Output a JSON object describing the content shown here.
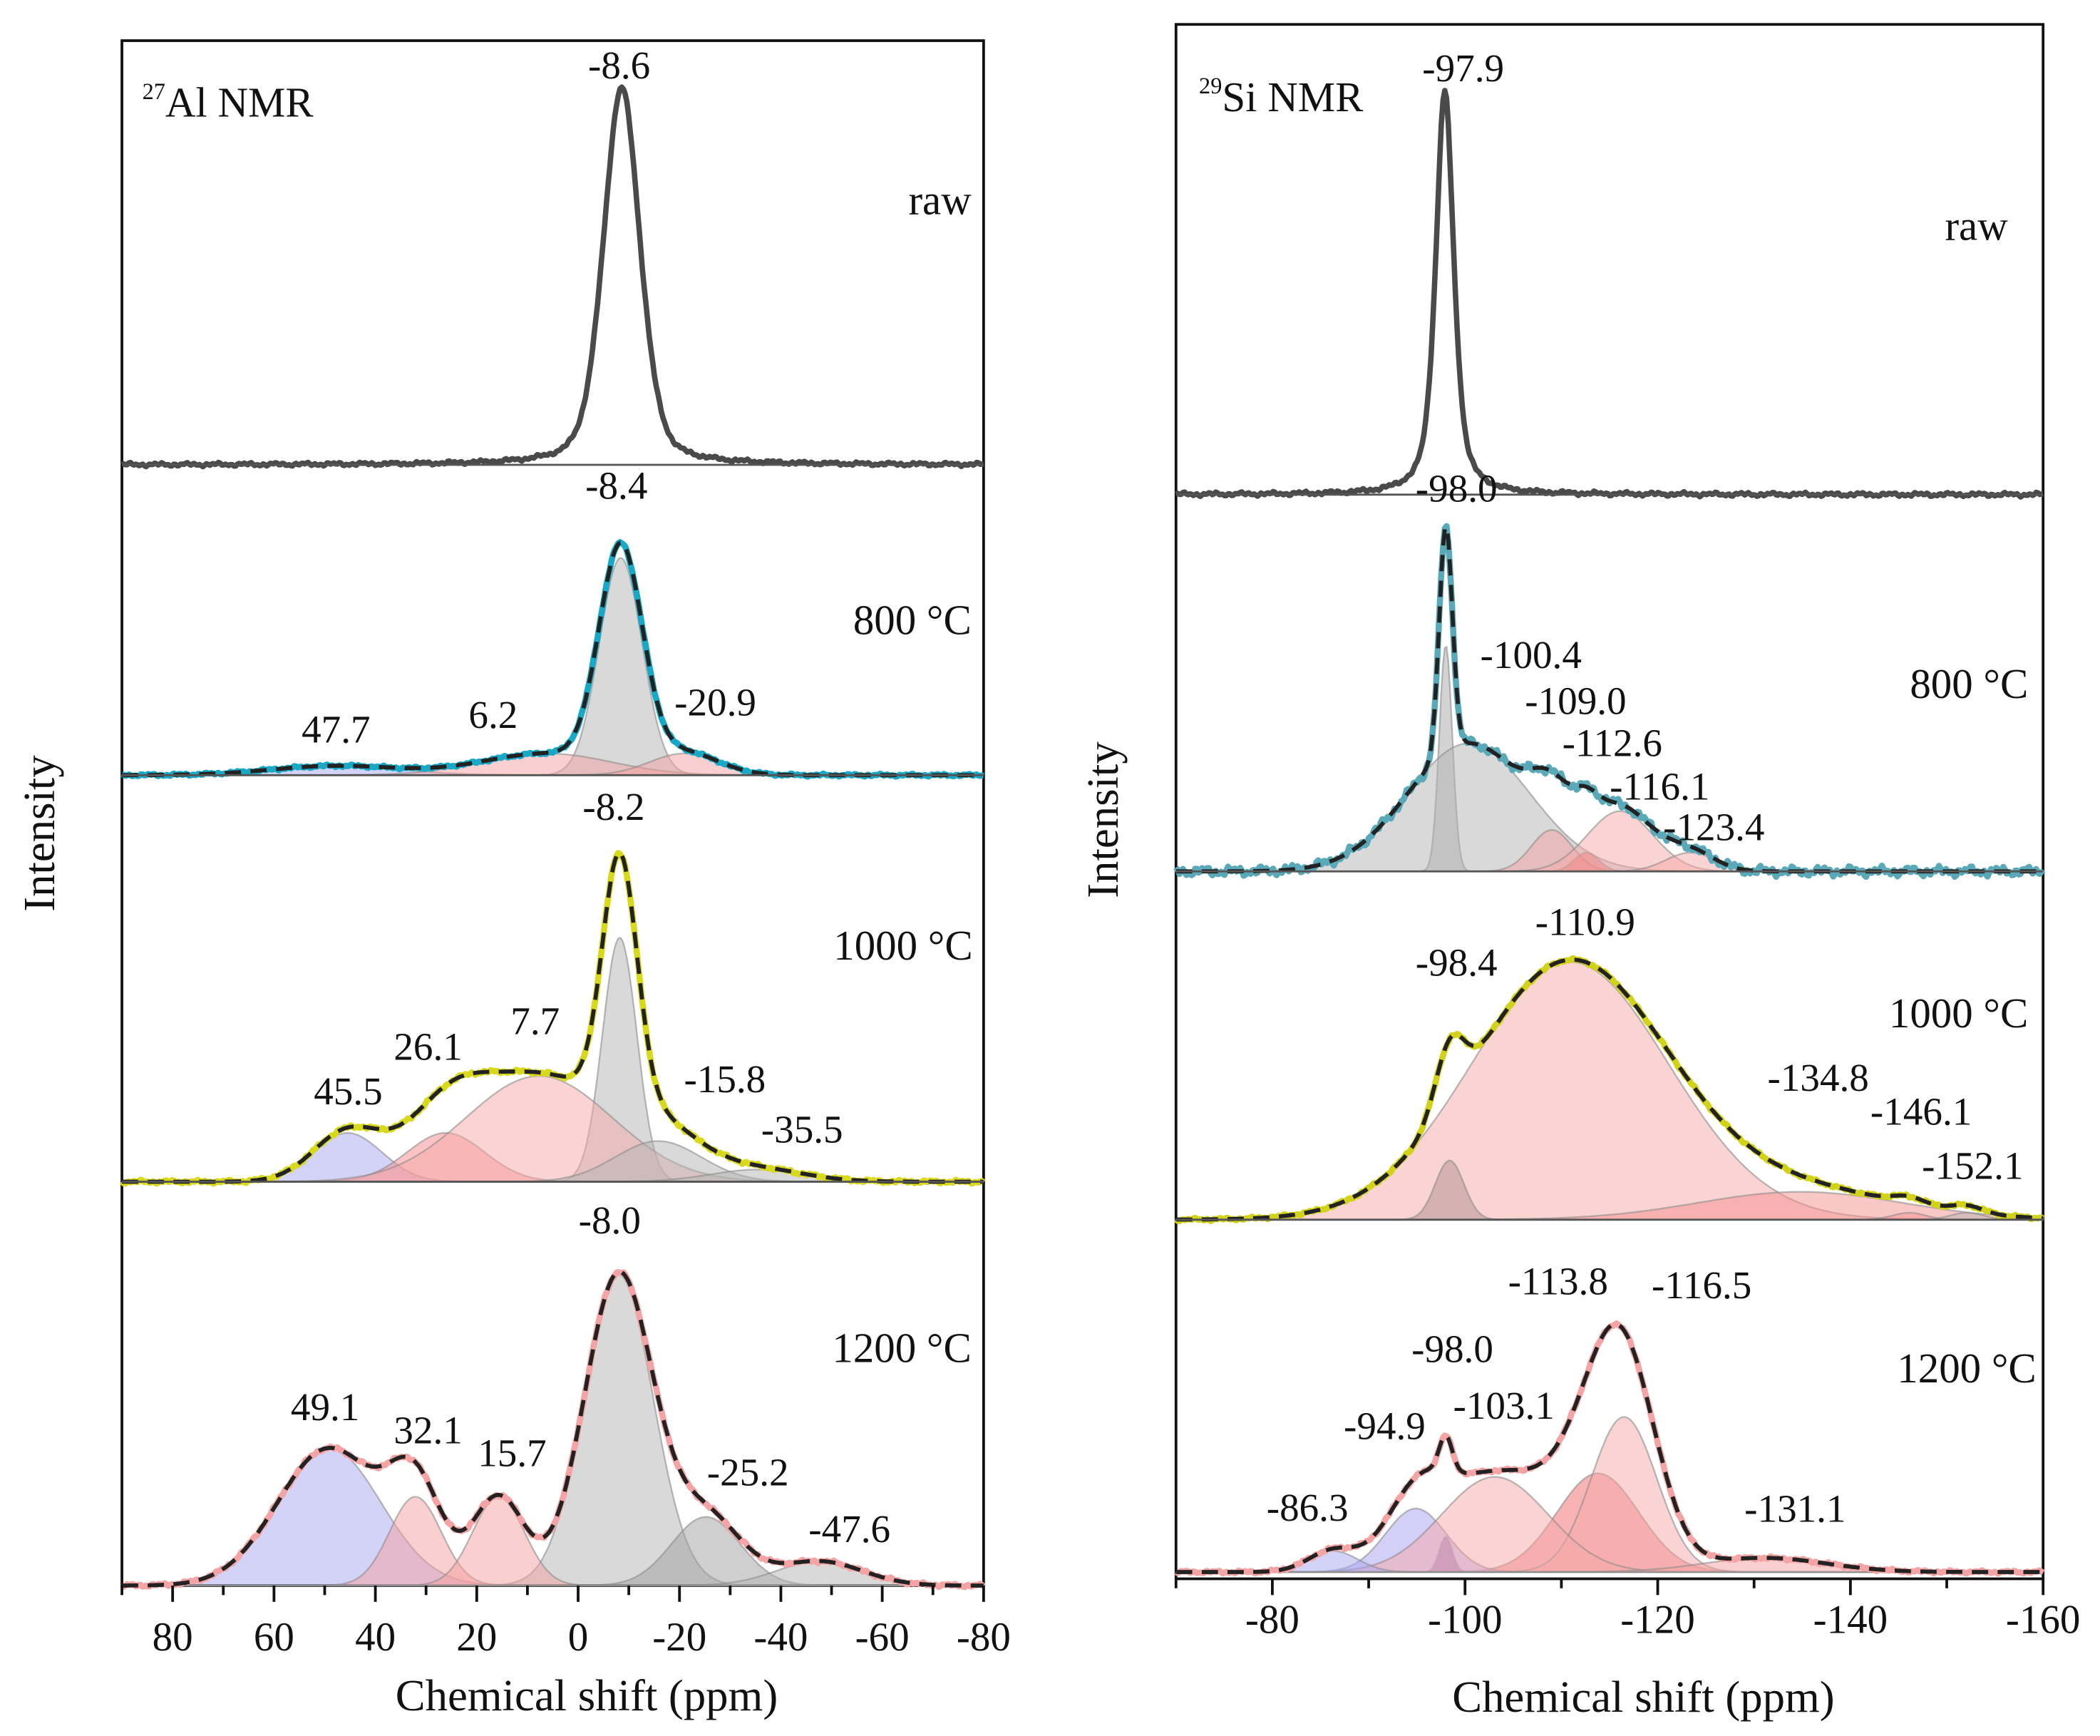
{
  "chart_data": [
    {
      "type": "line",
      "isotope": "27",
      "nucleus_label": "Al NMR",
      "xlabel": "Chemical shift (ppm)",
      "ylabel": "Intensity",
      "xlim": [
        90,
        -80
      ],
      "xticks": [
        80,
        60,
        40,
        20,
        0,
        -20,
        -40,
        -60,
        -80
      ],
      "tick_labels": [
        "80",
        "60",
        "40",
        "20",
        "0",
        "-20",
        "-40",
        "-60",
        "-80"
      ],
      "grid": false,
      "panels": [
        {
          "label": "raw",
          "line_color": "#4a4a4a",
          "peak_labels": [
            "-8.6"
          ],
          "components": [
            {
              "center": -8.6,
              "amplitude": 0.89,
              "fwhm": 8.5,
              "lorentz_fraction": 0.35,
              "color": "none"
            }
          ]
        },
        {
          "label": "800 °C",
          "line_color": "#19a9c6",
          "peak_labels": [
            "-8.4",
            "47.7",
            "6.2",
            "-20.9"
          ],
          "components": [
            {
              "center": -8.4,
              "amplitude": 0.7,
              "fwhm": 10,
              "color": "#b4b4b4"
            },
            {
              "center": 47.7,
              "amplitude": 0.03,
              "fwhm": 30,
              "color": "#a8a8f2"
            },
            {
              "center": 6.2,
              "amplitude": 0.07,
              "fwhm": 30,
              "color": "#f5a0a0"
            },
            {
              "center": -20.9,
              "amplitude": 0.07,
              "fwhm": 16,
              "color": "#f5a0a0"
            }
          ]
        },
        {
          "label": "1000 °C",
          "line_color": "#d8d81c",
          "peak_labels": [
            "-8.2",
            "45.5",
            "26.1",
            "7.7",
            "-15.8",
            "-35.5"
          ],
          "components": [
            {
              "center": -8.2,
              "amplitude": 0.6,
              "fwhm": 8,
              "color": "#b4b4b4"
            },
            {
              "center": 45.5,
              "amplitude": 0.12,
              "fwhm": 16,
              "color": "#a8a8f2"
            },
            {
              "center": 26.1,
              "amplitude": 0.12,
              "fwhm": 18,
              "color": "#f58a8a"
            },
            {
              "center": 7.7,
              "amplitude": 0.26,
              "fwhm": 34,
              "color": "#f5a8a8"
            },
            {
              "center": -15.8,
              "amplitude": 0.1,
              "fwhm": 20,
              "color": "#b4b4b4"
            },
            {
              "center": -35.5,
              "amplitude": 0.03,
              "fwhm": 22,
              "color": "#b4b4b4"
            }
          ]
        },
        {
          "label": "1200 °C",
          "line_color": "#f4a4a4",
          "peak_labels": [
            "-8.0",
            "49.1",
            "32.1",
            "15.7",
            "-25.2",
            "-47.6"
          ],
          "components": [
            {
              "center": -8.0,
              "amplitude": 0.77,
              "fwhm": 16,
              "color": "#b4b4b4"
            },
            {
              "center": 49.1,
              "amplitude": 0.34,
              "fwhm": 24,
              "color": "#a8a8f2"
            },
            {
              "center": 32.1,
              "amplitude": 0.22,
              "fwhm": 12,
              "color": "#f5a0a0"
            },
            {
              "center": 15.7,
              "amplitude": 0.22,
              "fwhm": 12,
              "color": "#f5a0a0"
            },
            {
              "center": -25.2,
              "amplitude": 0.17,
              "fwhm": 16,
              "color": "#a0a0a0"
            },
            {
              "center": -47.6,
              "amplitude": 0.06,
              "fwhm": 20,
              "color": "#b4b4b4"
            }
          ]
        }
      ]
    },
    {
      "type": "line",
      "isotope": "29",
      "nucleus_label": "Si NMR",
      "xlabel": "Chemical shift (ppm)",
      "ylabel": "Intensity",
      "xlim": [
        -70,
        -160
      ],
      "xticks": [
        -80,
        -100,
        -120,
        -140,
        -160
      ],
      "tick_labels": [
        "-80",
        "-100",
        "-120",
        "-140",
        "-160"
      ],
      "grid": false,
      "panels": [
        {
          "label": "raw",
          "line_color": "#4a4a4a",
          "peak_labels": [
            "-97.9"
          ],
          "components": [
            {
              "center": -97.9,
              "amplitude": 0.86,
              "fwhm": 2.2,
              "lorentz_fraction": 0.6,
              "color": "none"
            }
          ]
        },
        {
          "label": "800 °C",
          "line_color": "#5aa9b9",
          "peak_labels": [
            "-98.0",
            "-100.4",
            "-109.0",
            "-112.6",
            "-116.1",
            "-123.4"
          ],
          "components": [
            {
              "center": -98.0,
              "amplitude": 0.6,
              "fwhm": 1.6,
              "color": "#a8a8a8"
            },
            {
              "center": -100.4,
              "amplitude": 0.34,
              "fwhm": 15,
              "color": "#b4b4b4"
            },
            {
              "center": -109.0,
              "amplitude": 0.11,
              "fwhm": 5,
              "color": "#f5a0a0"
            },
            {
              "center": -112.6,
              "amplitude": 0.05,
              "fwhm": 3,
              "color": "#f06060"
            },
            {
              "center": -116.1,
              "amplitude": 0.16,
              "fwhm": 8,
              "color": "#f5a8a8"
            },
            {
              "center": -123.4,
              "amplitude": 0.05,
              "fwhm": 6,
              "color": "#f5a8a8"
            }
          ]
        },
        {
          "label": "1000 °C",
          "line_color": "#d2d21a",
          "peak_labels": [
            "-110.9",
            "-98.4",
            "-134.8",
            "-146.1",
            "-152.1"
          ],
          "components": [
            {
              "center": -110.9,
              "amplitude": 0.74,
              "fwhm": 24,
              "color": "#f5a8a8"
            },
            {
              "center": -98.4,
              "amplitude": 0.17,
              "fwhm": 3.5,
              "color": "#b09090"
            },
            {
              "center": -134.8,
              "amplitude": 0.08,
              "fwhm": 25,
              "color": "#f59090"
            },
            {
              "center": -146.1,
              "amplitude": 0.02,
              "fwhm": 4,
              "color": "#f59090"
            },
            {
              "center": -152.1,
              "amplitude": 0.02,
              "fwhm": 4,
              "color": "#b4b4b4"
            }
          ]
        },
        {
          "label": "1200 °C",
          "line_color": "#f4a4a4",
          "peak_labels": [
            "-113.8",
            "-116.5",
            "-98.0",
            "-94.9",
            "-103.1",
            "-86.3",
            "-131.1"
          ],
          "components": [
            {
              "center": -113.8,
              "amplitude": 0.28,
              "fwhm": 10,
              "color": "#f26a6a"
            },
            {
              "center": -116.5,
              "amplitude": 0.44,
              "fwhm": 8,
              "color": "#f5a8a8"
            },
            {
              "center": -98.0,
              "amplitude": 0.1,
              "fwhm": 1.6,
              "color": "#5a2060"
            },
            {
              "center": -94.9,
              "amplitude": 0.18,
              "fwhm": 7.4,
              "color": "#a8a0f0"
            },
            {
              "center": -103.1,
              "amplitude": 0.27,
              "fwhm": 13,
              "color": "#f5a8a8"
            },
            {
              "center": -86.3,
              "amplitude": 0.06,
              "fwhm": 6,
              "color": "#a8a8f2"
            },
            {
              "center": -131.1,
              "amplitude": 0.04,
              "fwhm": 15,
              "color": "#f5a0a0"
            }
          ]
        }
      ]
    }
  ]
}
